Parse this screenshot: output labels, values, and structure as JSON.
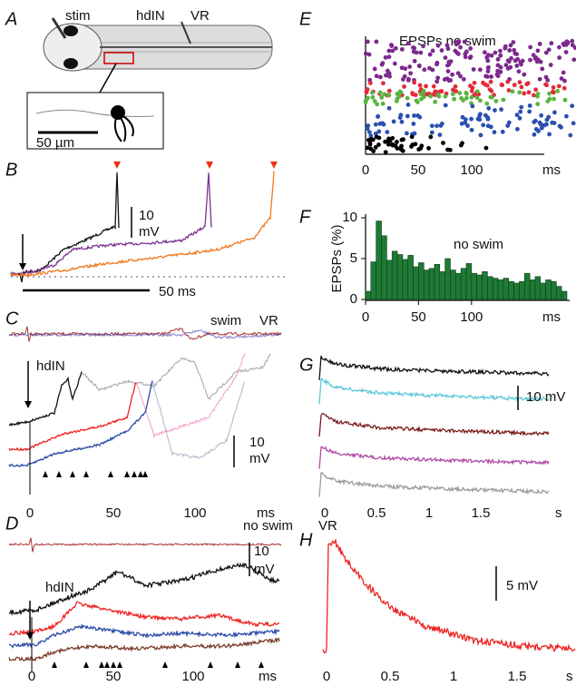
{
  "panel_labels": [
    "A",
    "B",
    "C",
    "D",
    "E",
    "F",
    "G",
    "H"
  ],
  "panel_a": {
    "labels": [
      "stim",
      "hdIN",
      "VR"
    ],
    "scale": "50 µm"
  },
  "panel_b": {
    "scale_value": "10",
    "scale_unit": "mV",
    "time_scale": "50 ms"
  },
  "panel_c": {
    "labels": [
      "swim",
      "VR",
      "hdIN"
    ],
    "scale_value": "10",
    "scale_unit": "mV",
    "xticks": [
      0,
      50,
      100
    ],
    "x_unit": "ms"
  },
  "panel_d": {
    "labels": [
      "no swim",
      "VR",
      "hdIN"
    ],
    "scale_value": "10",
    "scale_unit": "mV",
    "xticks": [
      0,
      50,
      100
    ],
    "x_unit": "ms"
  },
  "panel_e": {
    "title": "EPSPs no swim",
    "xticks": [
      0,
      50,
      100
    ],
    "x_unit": "ms"
  },
  "panel_g": {
    "scale": "10 mV",
    "xticks": [
      0,
      0.5,
      1,
      1.5
    ],
    "x_unit": "s"
  },
  "panel_h": {
    "scale": "5 mV",
    "xticks": [
      0,
      0.5,
      1,
      1.5
    ],
    "x_unit": "s"
  },
  "chart_data": {
    "type": "histogram",
    "annotation": "no swim",
    "y_label": "EPSPs (%)",
    "x_unit": "ms",
    "bins": [
      0,
      5,
      10,
      15,
      20,
      25,
      30,
      35,
      40,
      45,
      50,
      55,
      60,
      65,
      70,
      75,
      80,
      85,
      90,
      95,
      100,
      105,
      110,
      115,
      120,
      125,
      130,
      135,
      140,
      145,
      150,
      155,
      160,
      165,
      170,
      175,
      180,
      185,
      190
    ],
    "values": [
      1,
      4.6,
      9.6,
      7.8,
      4.8,
      5.9,
      5.5,
      4.9,
      5.4,
      4,
      4.5,
      3.6,
      3.8,
      4.3,
      3.4,
      5,
      3.6,
      3.2,
      3.8,
      4.4,
      3.2,
      3,
      3.4,
      2.8,
      2.6,
      2.4,
      2.6,
      2.2,
      2,
      2.2,
      3.2,
      2.4,
      2.8,
      2,
      2.4,
      2.2,
      1.6,
      1
    ],
    "color": "#1e7a34",
    "xlim": [
      0,
      190
    ],
    "ylim": [
      0,
      10
    ],
    "yticks": [
      0,
      5,
      10
    ],
    "xticks": [
      0,
      50,
      100
    ]
  }
}
